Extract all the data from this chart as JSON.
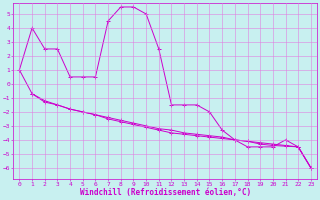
{
  "xlabel": "Windchill (Refroidissement éolien,°C)",
  "bg_color": "#c8f0f0",
  "grid_color": "#e080e0",
  "line_color": "#cc00cc",
  "xlim": [
    -0.5,
    23.5
  ],
  "ylim": [
    -6.8,
    5.8
  ],
  "yticks": [
    5,
    4,
    3,
    2,
    1,
    0,
    -1,
    -2,
    -3,
    -4,
    -5,
    -6
  ],
  "xticks": [
    0,
    1,
    2,
    3,
    4,
    5,
    6,
    7,
    8,
    9,
    10,
    11,
    12,
    13,
    14,
    15,
    16,
    17,
    18,
    19,
    20,
    21,
    22,
    23
  ],
  "curve1_x": [
    0,
    1,
    2,
    3,
    4,
    5,
    6,
    7,
    8,
    9,
    10,
    11,
    12,
    13,
    14,
    15,
    16,
    17,
    18,
    19,
    20,
    21,
    22,
    23
  ],
  "curve1_y": [
    1.0,
    4.0,
    2.5,
    2.5,
    0.5,
    0.5,
    0.5,
    4.5,
    5.5,
    5.5,
    5.0,
    2.5,
    -1.5,
    -1.5,
    -1.5,
    -2.0,
    -3.3,
    -4.0,
    -4.5,
    -4.5,
    -4.5,
    -4.0,
    -4.5,
    -6.0
  ],
  "curve2_x": [
    0,
    1,
    2,
    3,
    4,
    5,
    6,
    7,
    8,
    9,
    10,
    11,
    12,
    13,
    14,
    15,
    16,
    17,
    18,
    19,
    20,
    21,
    22,
    23
  ],
  "curve2_y": [
    1.0,
    -0.7,
    -1.2,
    -1.5,
    -1.8,
    -2.0,
    -2.2,
    -2.4,
    -2.6,
    -2.8,
    -3.0,
    -3.2,
    -3.3,
    -3.5,
    -3.6,
    -3.7,
    -3.8,
    -4.0,
    -4.1,
    -4.2,
    -4.3,
    -4.4,
    -4.5,
    -6.0
  ],
  "curve3_x": [
    1,
    2,
    3,
    4,
    5,
    6,
    7,
    8,
    9,
    10,
    11,
    12,
    13,
    14,
    15,
    16,
    17,
    18,
    19,
    20,
    21,
    22,
    23
  ],
  "curve3_y": [
    -0.7,
    -1.3,
    -1.5,
    -1.8,
    -2.0,
    -2.2,
    -2.5,
    -2.7,
    -2.9,
    -3.1,
    -3.3,
    -3.5,
    -3.6,
    -3.7,
    -3.8,
    -3.9,
    -4.0,
    -4.1,
    -4.3,
    -4.4,
    -4.45,
    -4.5,
    -6.0
  ],
  "tick_fontsize": 4.5,
  "label_fontsize": 5.5
}
